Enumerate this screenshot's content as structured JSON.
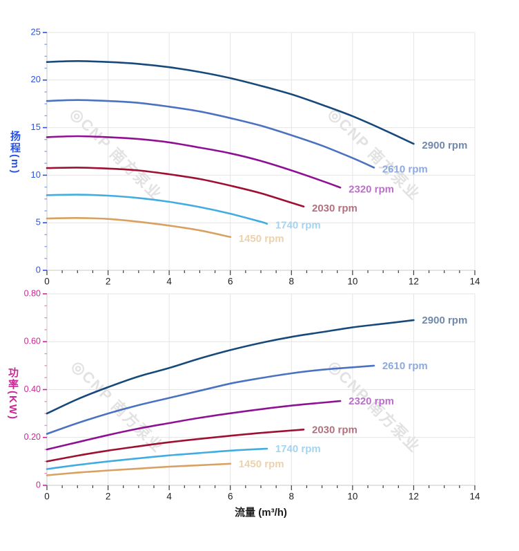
{
  "page": {
    "background": "#ffffff"
  },
  "watermark": {
    "text": "◎CNP 南方泵业",
    "color": "#e2e2e2"
  },
  "chart_data": [
    {
      "type": "line",
      "id": "head",
      "title": "",
      "xlabel": "",
      "ylabel": "扬程(m)",
      "axis_color": "#2952e3",
      "minor_tick_color": "#8aa4f0",
      "x_tick_color": "#3a3a3a",
      "x_label_color": "#1d1f24",
      "grid": true,
      "grid_color": "#e4e4e4",
      "axis_line_color": "#c9c9c9",
      "xlim": [
        0,
        14
      ],
      "ylim": [
        0,
        25
      ],
      "x_major": 2,
      "x_minor": 0.5,
      "y_major": 5,
      "y_minor": 1.25,
      "x_tick_labels": [
        "0",
        "2",
        "4",
        "6",
        "8",
        "10",
        "12",
        "14"
      ],
      "y_tick_labels": [
        "0",
        "5",
        "10",
        "15",
        "20",
        "25"
      ],
      "legend_position": "end-of-line labels",
      "series": [
        {
          "name": "2900 rpm",
          "color": "#17497a",
          "label_color": "#7089a8",
          "points": [
            [
              0,
              21.9
            ],
            [
              1,
              22.0
            ],
            [
              2,
              21.9
            ],
            [
              3,
              21.7
            ],
            [
              4,
              21.35
            ],
            [
              5,
              20.85
            ],
            [
              6,
              20.2
            ],
            [
              7,
              19.4
            ],
            [
              8,
              18.5
            ],
            [
              9,
              17.4
            ],
            [
              10,
              16.2
            ],
            [
              11,
              14.8
            ],
            [
              12,
              13.3
            ]
          ]
        },
        {
          "name": "2610 rpm",
          "color": "#4a72c0",
          "label_color": "#8ea9dd",
          "points": [
            [
              0,
              17.8
            ],
            [
              1,
              17.9
            ],
            [
              2,
              17.8
            ],
            [
              3,
              17.6
            ],
            [
              4,
              17.2
            ],
            [
              5,
              16.7
            ],
            [
              6,
              16.0
            ],
            [
              7,
              15.2
            ],
            [
              8,
              14.2
            ],
            [
              9,
              13.1
            ],
            [
              10,
              11.8
            ],
            [
              10.7,
              10.8
            ]
          ]
        },
        {
          "name": "2320 rpm",
          "color": "#8f1193",
          "label_color": "#bb6ecb",
          "points": [
            [
              0,
              14.0
            ],
            [
              1,
              14.1
            ],
            [
              2,
              14.0
            ],
            [
              3,
              13.8
            ],
            [
              4,
              13.45
            ],
            [
              5,
              12.9
            ],
            [
              6,
              12.3
            ],
            [
              7,
              11.5
            ],
            [
              8,
              10.5
            ],
            [
              9,
              9.4
            ],
            [
              9.6,
              8.7
            ]
          ]
        },
        {
          "name": "2030 rpm",
          "color": "#9d1031",
          "label_color": "#b2707f",
          "points": [
            [
              0,
              10.75
            ],
            [
              1,
              10.8
            ],
            [
              2,
              10.7
            ],
            [
              3,
              10.5
            ],
            [
              4,
              10.1
            ],
            [
              5,
              9.6
            ],
            [
              6,
              8.9
            ],
            [
              7,
              8.1
            ],
            [
              8,
              7.1
            ],
            [
              8.4,
              6.7
            ]
          ]
        },
        {
          "name": "1740 rpm",
          "color": "#41ace2",
          "label_color": "#a3d4f2",
          "points": [
            [
              0,
              7.9
            ],
            [
              1,
              7.95
            ],
            [
              2,
              7.85
            ],
            [
              3,
              7.6
            ],
            [
              4,
              7.2
            ],
            [
              5,
              6.65
            ],
            [
              6,
              5.95
            ],
            [
              7,
              5.1
            ],
            [
              7.2,
              4.9
            ]
          ]
        },
        {
          "name": "1450 rpm",
          "color": "#d8a15f",
          "label_color": "#ecd2ad",
          "points": [
            [
              0,
              5.45
            ],
            [
              1,
              5.5
            ],
            [
              2,
              5.4
            ],
            [
              3,
              5.1
            ],
            [
              4,
              4.7
            ],
            [
              5,
              4.2
            ],
            [
              6,
              3.5
            ]
          ]
        }
      ]
    },
    {
      "type": "line",
      "id": "power",
      "title": "",
      "xlabel": "流量 (m³/h)",
      "ylabel": "功率(KW)",
      "axis_color": "#cb2697",
      "minor_tick_color": "#e590c8",
      "x_tick_color": "#3a3a3a",
      "x_label_color": "#1d1f24",
      "grid": true,
      "grid_color": "#e4e4e4",
      "axis_line_color": "#c9c9c9",
      "xlim": [
        0,
        14
      ],
      "ylim": [
        0,
        0.8
      ],
      "x_major": 2,
      "x_minor": 0.5,
      "y_major": 0.2,
      "y_minor": 0.05,
      "x_tick_labels": [
        "0",
        "2",
        "4",
        "6",
        "8",
        "10",
        "12",
        "14"
      ],
      "y_tick_labels": [
        "0",
        "0.20",
        "0.40",
        "0.60",
        "0.80"
      ],
      "legend_position": "end-of-line labels",
      "series": [
        {
          "name": "2900 rpm",
          "color": "#17497a",
          "label_color": "#7089a8",
          "points": [
            [
              0,
              0.3
            ],
            [
              1,
              0.36
            ],
            [
              2,
              0.41
            ],
            [
              3,
              0.455
            ],
            [
              4,
              0.49
            ],
            [
              5,
              0.53
            ],
            [
              6,
              0.565
            ],
            [
              7,
              0.595
            ],
            [
              8,
              0.62
            ],
            [
              9,
              0.64
            ],
            [
              10,
              0.66
            ],
            [
              11,
              0.675
            ],
            [
              12,
              0.69
            ]
          ]
        },
        {
          "name": "2610 rpm",
          "color": "#4a72c0",
          "label_color": "#8ea9dd",
          "points": [
            [
              0,
              0.215
            ],
            [
              1,
              0.26
            ],
            [
              2,
              0.3
            ],
            [
              3,
              0.335
            ],
            [
              4,
              0.365
            ],
            [
              5,
              0.395
            ],
            [
              6,
              0.425
            ],
            [
              7,
              0.448
            ],
            [
              8,
              0.468
            ],
            [
              9,
              0.483
            ],
            [
              10,
              0.493
            ],
            [
              10.7,
              0.5
            ]
          ]
        },
        {
          "name": "2320 rpm",
          "color": "#8f1193",
          "label_color": "#bb6ecb",
          "points": [
            [
              0,
              0.15
            ],
            [
              1,
              0.18
            ],
            [
              2,
              0.21
            ],
            [
              3,
              0.237
            ],
            [
              4,
              0.26
            ],
            [
              5,
              0.282
            ],
            [
              6,
              0.301
            ],
            [
              7,
              0.318
            ],
            [
              8,
              0.333
            ],
            [
              9,
              0.345
            ],
            [
              9.6,
              0.352
            ]
          ]
        },
        {
          "name": "2030 rpm",
          "color": "#9d1031",
          "label_color": "#b2707f",
          "points": [
            [
              0,
              0.1
            ],
            [
              1,
              0.124
            ],
            [
              2,
              0.145
            ],
            [
              3,
              0.163
            ],
            [
              4,
              0.18
            ],
            [
              5,
              0.194
            ],
            [
              6,
              0.207
            ],
            [
              7,
              0.219
            ],
            [
              8,
              0.229
            ],
            [
              8.4,
              0.233
            ]
          ]
        },
        {
          "name": "1740 rpm",
          "color": "#41ace2",
          "label_color": "#a3d4f2",
          "points": [
            [
              0,
              0.068
            ],
            [
              1,
              0.085
            ],
            [
              2,
              0.1
            ],
            [
              3,
              0.113
            ],
            [
              4,
              0.125
            ],
            [
              5,
              0.135
            ],
            [
              6,
              0.145
            ],
            [
              7,
              0.152
            ],
            [
              7.2,
              0.153
            ]
          ]
        },
        {
          "name": "1450 rpm",
          "color": "#d8a15f",
          "label_color": "#ecd2ad",
          "points": [
            [
              0,
              0.042
            ],
            [
              1,
              0.053
            ],
            [
              2,
              0.062
            ],
            [
              3,
              0.07
            ],
            [
              4,
              0.078
            ],
            [
              5,
              0.084
            ],
            [
              6,
              0.09
            ]
          ]
        }
      ]
    }
  ]
}
